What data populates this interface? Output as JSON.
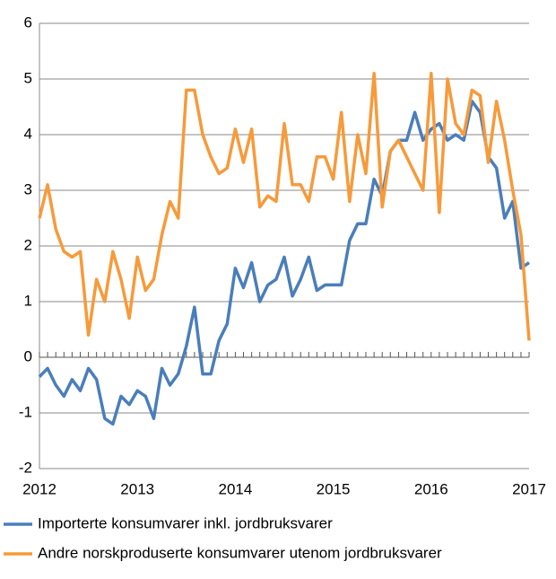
{
  "chart_data": {
    "type": "line",
    "x": [
      2012,
      2012.083,
      2012.167,
      2012.25,
      2012.333,
      2012.417,
      2012.5,
      2012.583,
      2012.667,
      2012.75,
      2012.833,
      2012.917,
      2013,
      2013.083,
      2013.167,
      2013.25,
      2013.333,
      2013.417,
      2013.5,
      2013.583,
      2013.667,
      2013.75,
      2013.833,
      2013.917,
      2014,
      2014.083,
      2014.167,
      2014.25,
      2014.333,
      2014.417,
      2014.5,
      2014.583,
      2014.667,
      2014.75,
      2014.833,
      2014.917,
      2015,
      2015.083,
      2015.167,
      2015.25,
      2015.333,
      2015.417,
      2015.5,
      2015.583,
      2015.667,
      2015.75,
      2015.833,
      2015.917,
      2016,
      2016.083,
      2016.167,
      2016.25,
      2016.333,
      2016.417,
      2016.5,
      2016.583,
      2016.667,
      2016.75,
      2016.833,
      2016.917,
      2017
    ],
    "series": [
      {
        "name": "Importerte konsumvarer inkl. jordbruksvarer",
        "color": "#4a7ebb",
        "values": [
          -0.35,
          -0.2,
          -0.5,
          -0.7,
          -0.4,
          -0.6,
          -0.2,
          -0.4,
          -1.1,
          -1.2,
          -0.7,
          -0.85,
          -0.6,
          -0.7,
          -1.1,
          -0.2,
          -0.5,
          -0.3,
          0.2,
          0.9,
          -0.3,
          -0.3,
          0.3,
          0.6,
          1.6,
          1.25,
          1.7,
          1.0,
          1.3,
          1.4,
          1.8,
          1.1,
          1.4,
          1.8,
          1.2,
          1.3,
          1.3,
          1.3,
          2.1,
          2.4,
          2.4,
          3.2,
          2.9,
          3.7,
          3.9,
          3.9,
          4.4,
          3.9,
          4.1,
          4.2,
          3.9,
          4.0,
          3.9,
          4.6,
          4.4,
          3.6,
          3.4,
          2.5,
          2.8,
          1.6,
          1.7
        ]
      },
      {
        "name": "Andre norskproduserte konsumvarer utenom jordbruksvarer",
        "color": "#f79a3a",
        "values": [
          2.5,
          3.1,
          2.3,
          1.9,
          1.8,
          1.9,
          0.4,
          1.4,
          1.0,
          1.9,
          1.4,
          0.7,
          1.8,
          1.2,
          1.4,
          2.2,
          2.8,
          2.5,
          4.8,
          4.8,
          4.0,
          3.6,
          3.3,
          3.4,
          4.1,
          3.5,
          4.1,
          2.7,
          2.9,
          2.8,
          4.2,
          3.1,
          3.1,
          2.8,
          3.6,
          3.6,
          3.2,
          4.4,
          2.8,
          4.0,
          3.3,
          5.1,
          2.7,
          3.7,
          3.9,
          3.6,
          3.3,
          3.0,
          5.1,
          2.6,
          5.0,
          4.2,
          4.0,
          4.8,
          4.7,
          3.5,
          4.6,
          3.9,
          3.0,
          2.2,
          0.3
        ]
      }
    ],
    "xlim": [
      2012,
      2017
    ],
    "xticks": [
      2012,
      2013,
      2014,
      2015,
      2016,
      2017
    ],
    "ylim": [
      -2,
      6
    ],
    "yticks": [
      -2,
      -1,
      0,
      1,
      2,
      3,
      4,
      5,
      6
    ],
    "grid": true
  }
}
